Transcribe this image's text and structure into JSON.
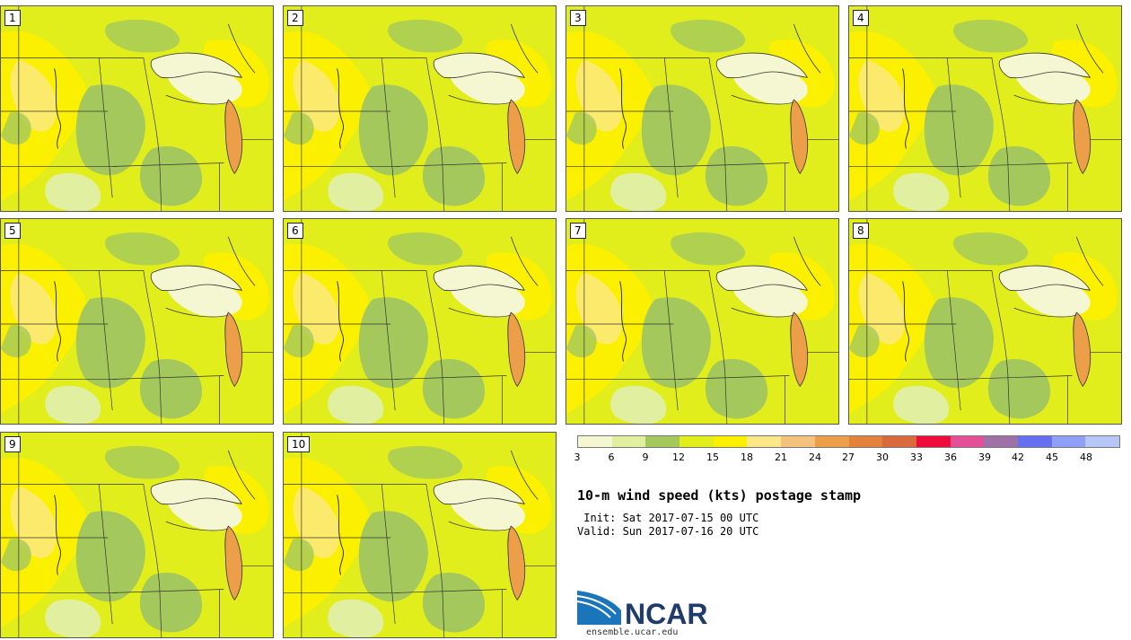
{
  "stamps": [
    {
      "label": "1"
    },
    {
      "label": "2"
    },
    {
      "label": "3"
    },
    {
      "label": "4"
    },
    {
      "label": "5"
    },
    {
      "label": "6"
    },
    {
      "label": "7"
    },
    {
      "label": "8"
    },
    {
      "label": "9"
    },
    {
      "label": "10"
    }
  ],
  "legend": {
    "ticks": [
      "3",
      "6",
      "9",
      "12",
      "15",
      "18",
      "21",
      "24",
      "27",
      "30",
      "33",
      "36",
      "39",
      "42",
      "45",
      "48"
    ],
    "colors": [
      "#f4f7d2",
      "#e1f0a0",
      "#a4c85c",
      "#e2ee1c",
      "#fbf000",
      "#fde887",
      "#f4c27d",
      "#ec9f48",
      "#e4823c",
      "#da6a3c",
      "#ef0a3c",
      "#e35098",
      "#9e71a8",
      "#6470f0",
      "#8ea0f8",
      "#b6c6f6"
    ]
  },
  "title": "10-m wind speed (kts) postage stamp",
  "init_text": " Init: Sat 2017-07-15 00 UTC",
  "valid_text": "Valid: Sun 2017-07-16 20 UTC",
  "logo": {
    "text": "NCAR",
    "url": "ensemble.ucar.edu"
  }
}
